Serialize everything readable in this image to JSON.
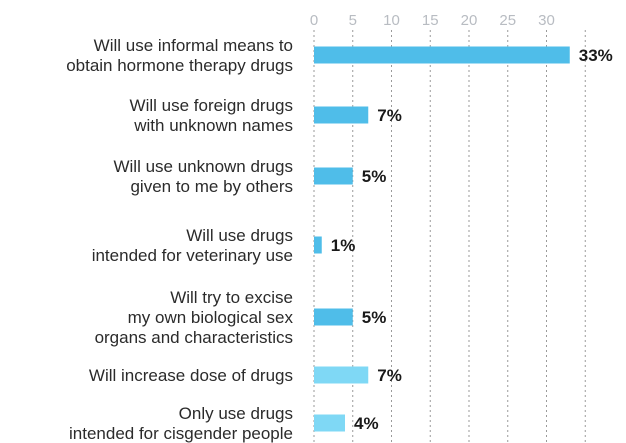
{
  "chart_data": {
    "type": "bar",
    "orientation": "horizontal",
    "categories": [
      [
        "Will use informal means to",
        "obtain hormone therapy drugs"
      ],
      [
        "Will use foreign drugs",
        "with unknown names"
      ],
      [
        "Will use unknown drugs",
        "given to me by others"
      ],
      [
        "Will use drugs",
        "intended for veterinary use"
      ],
      [
        "Will try to excise",
        "my own biological sex",
        "organs and characteristics"
      ],
      [
        "Will increase dose of drugs"
      ],
      [
        "Only use drugs",
        "intended for cisgender people"
      ]
    ],
    "values": [
      33,
      7,
      5,
      1,
      5,
      7,
      4
    ],
    "value_labels": [
      "33%",
      "7%",
      "5%",
      "1%",
      "5%",
      "7%",
      "4%"
    ],
    "x_ticks": [
      0,
      5,
      10,
      15,
      20,
      25,
      30
    ],
    "x_tick_labels": [
      "0",
      "5",
      "10",
      "15",
      "20",
      "25",
      "30"
    ],
    "xlim": [
      0,
      38
    ],
    "grid": true,
    "colors": {
      "bar_dark": "#4fbde9",
      "bar_light": "#7fd8f5",
      "grid": "#9a9a9a",
      "tick_text": "#b8bcc2",
      "label_text": "#2b2b2b",
      "value_text": "#1a1a1a"
    }
  }
}
